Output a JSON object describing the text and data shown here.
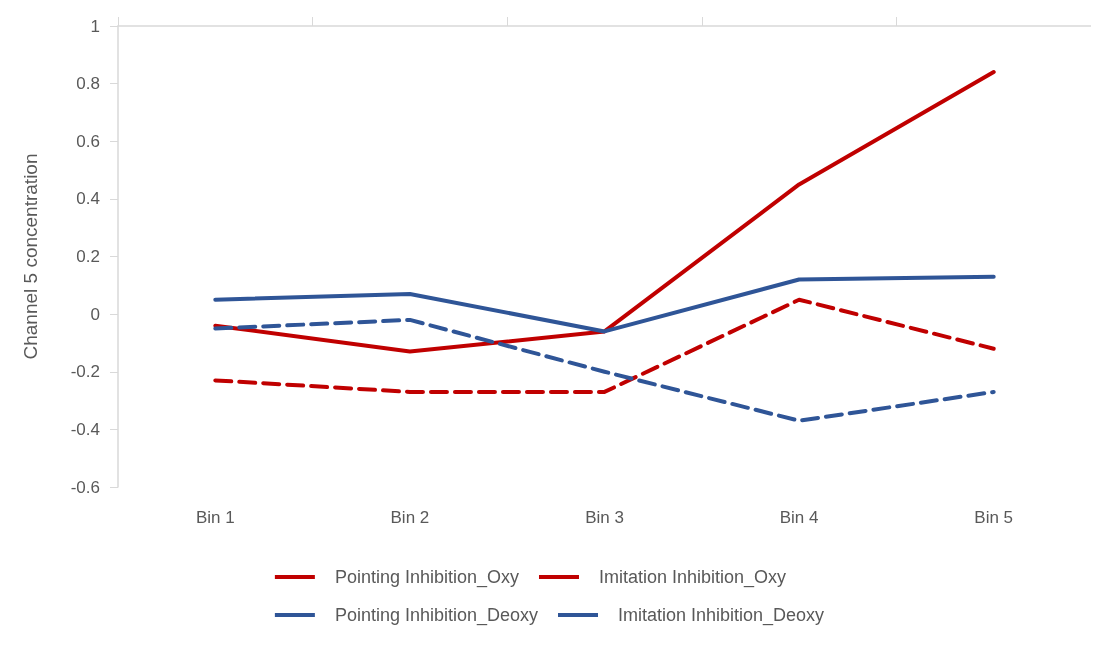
{
  "chart_data": {
    "type": "line",
    "ylabel": "Channel 5 concentration",
    "categories": [
      "Bin 1",
      "Bin 2",
      "Bin 3",
      "Bin 4",
      "Bin 5"
    ],
    "series": [
      {
        "name": "Pointing Inhibition_Oxy",
        "color": "#c00000",
        "line_style": "dashed",
        "values": [
          -0.23,
          -0.27,
          -0.27,
          0.05,
          -0.12
        ]
      },
      {
        "name": "Imitation Inhibition_Oxy",
        "color": "#c00000",
        "line_style": "solid",
        "values": [
          -0.04,
          -0.13,
          -0.06,
          0.45,
          0.84
        ]
      },
      {
        "name": "Pointing Inhibition_Deoxy",
        "color": "#2f5597",
        "line_style": "dashed",
        "values": [
          -0.05,
          -0.02,
          -0.2,
          -0.37,
          -0.27
        ]
      },
      {
        "name": "Imitation Inhibition_Deoxy",
        "color": "#2f5597",
        "line_style": "solid",
        "values": [
          0.05,
          0.07,
          -0.06,
          0.12,
          0.13
        ]
      }
    ],
    "ylim": [
      -0.6,
      1
    ],
    "yticks": [
      -0.6,
      -0.4,
      -0.2,
      0,
      0.2,
      0.4,
      0.6,
      0.8,
      1
    ],
    "grid": false,
    "legend": "bottom",
    "marker": "none"
  }
}
